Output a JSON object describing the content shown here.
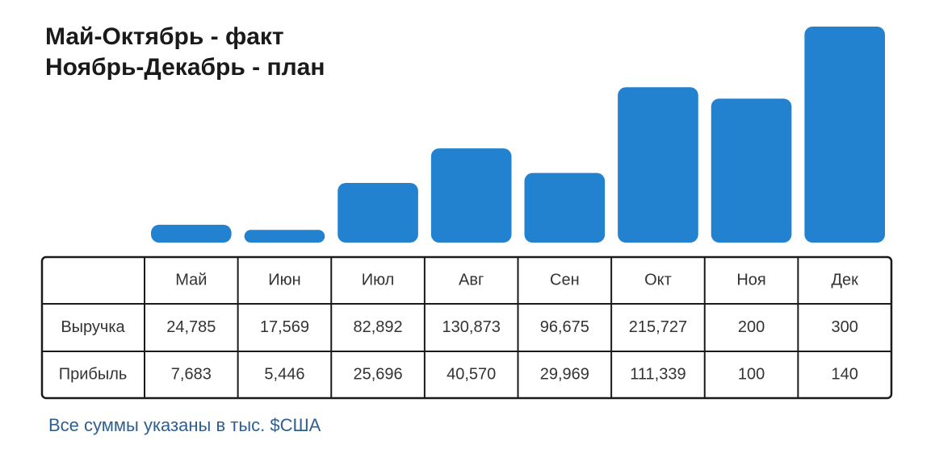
{
  "chart_data": {
    "type": "bar",
    "title": [
      "Май-Октябрь - факт",
      "Ноябрь-Декабрь - план"
    ],
    "categories": [
      "Май",
      "Июн",
      "Июл",
      "Авг",
      "Сен",
      "Окт",
      "Ноя",
      "Дек"
    ],
    "series": [
      {
        "name": "Выручка",
        "color": "#2382d0",
        "values": [
          24.785,
          17.569,
          82.892,
          130.873,
          96.675,
          215.727,
          200,
          300
        ],
        "value_labels": [
          "24,785",
          "17,569",
          "82,892",
          "130,873",
          "96,675",
          "215,727",
          "200",
          "300"
        ]
      },
      {
        "name": "Прибыль",
        "values": [
          7.683,
          5.446,
          25.696,
          40.57,
          29.969,
          111.339,
          100,
          140
        ],
        "value_labels": [
          "7,683",
          "5,446",
          "25,696",
          "40,570",
          "29,969",
          "111,339",
          "100",
          "140"
        ]
      }
    ],
    "ylim": [
      0,
      300
    ],
    "note": "Все суммы указаны в тыс. $США"
  }
}
